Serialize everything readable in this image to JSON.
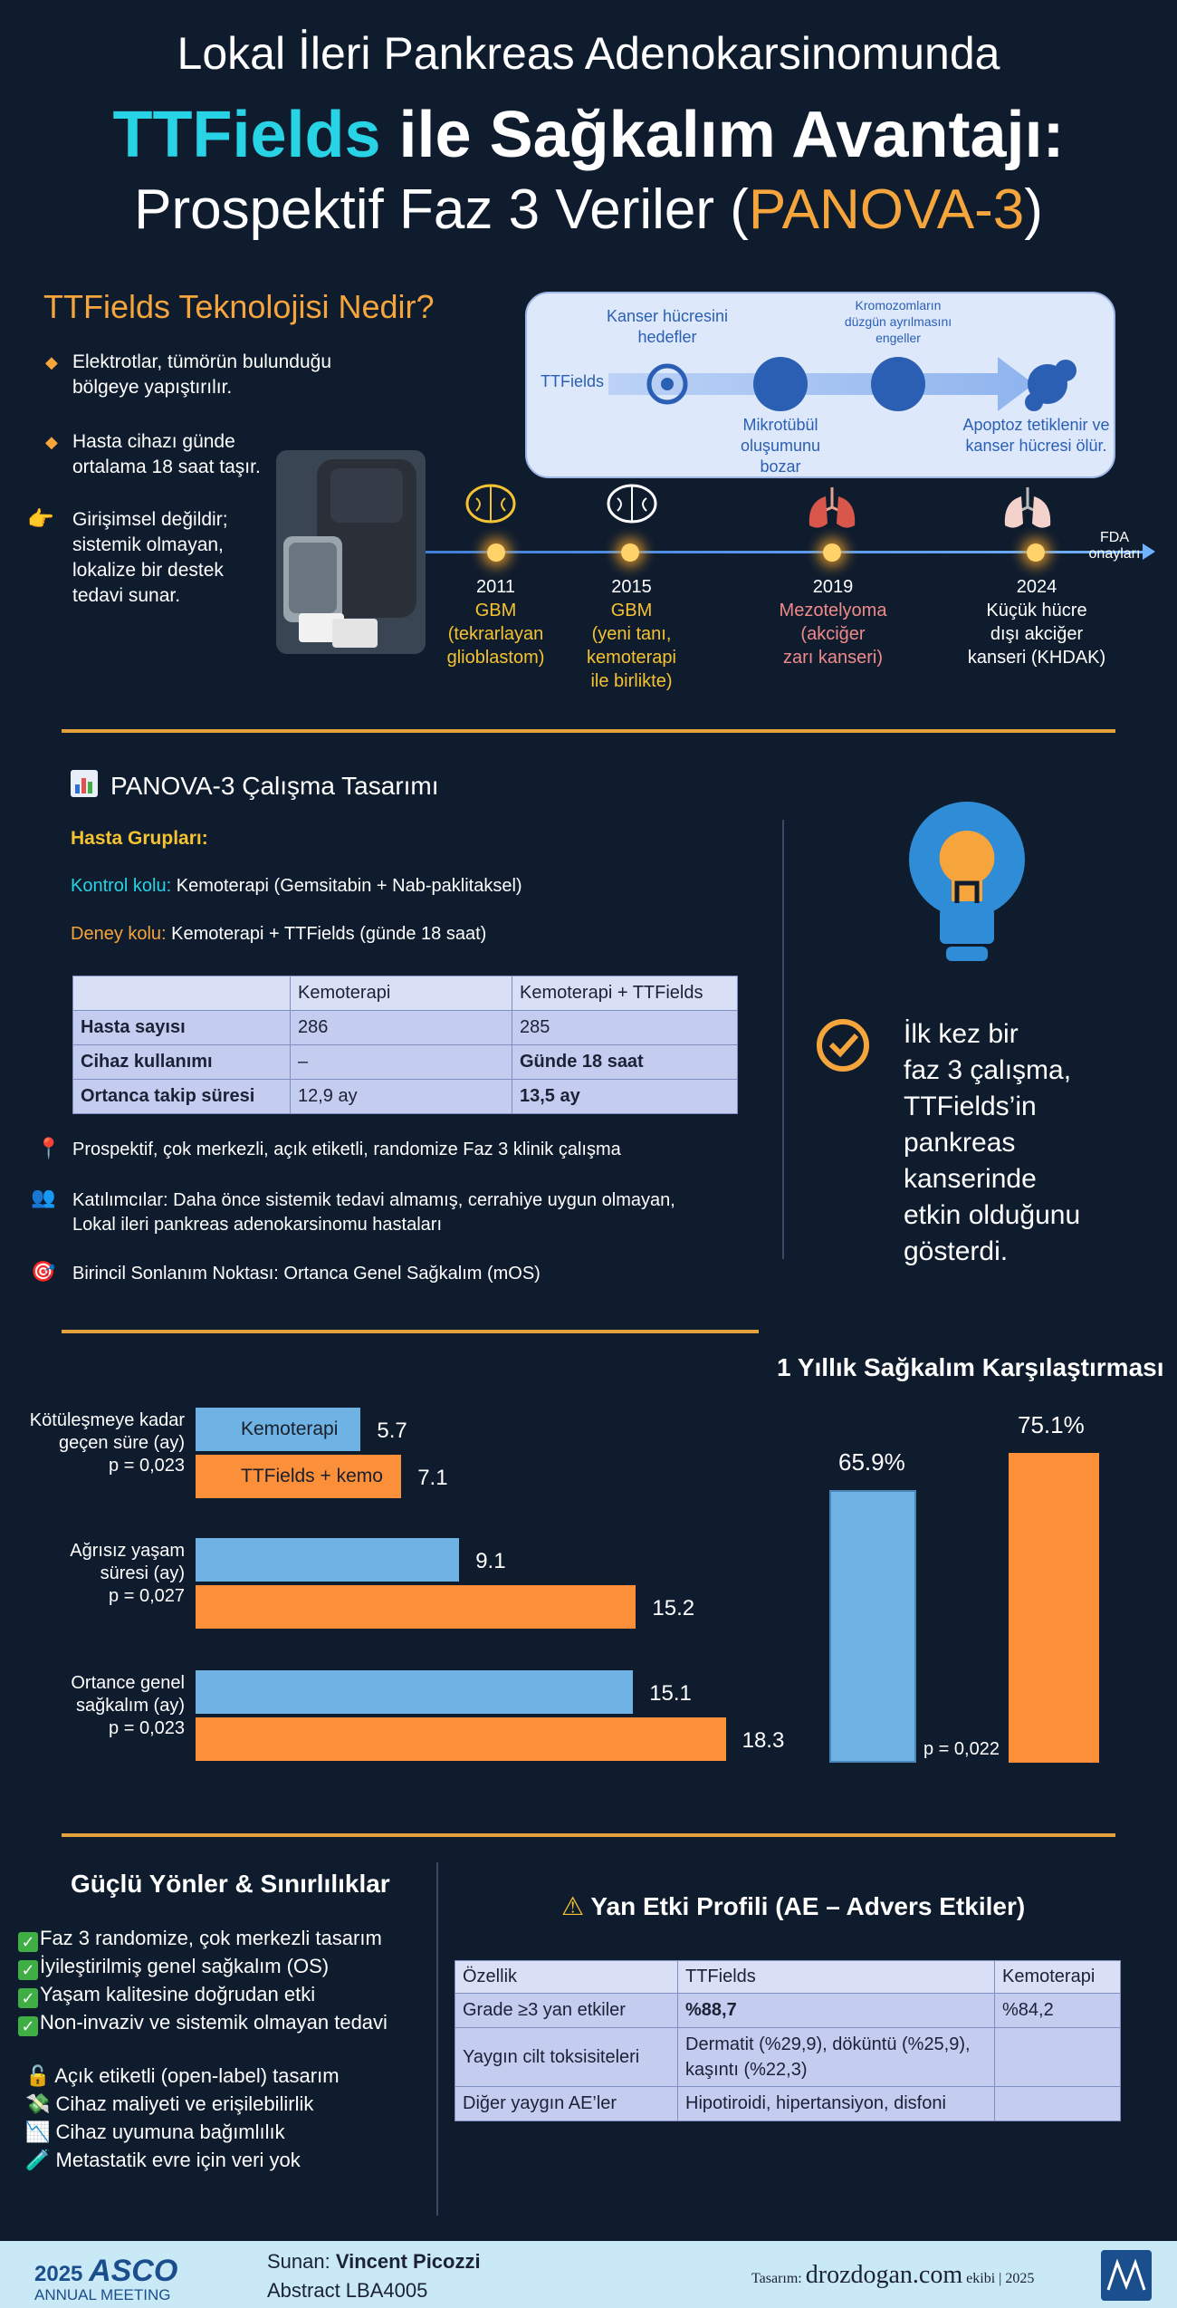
{
  "header": {
    "line1": "Lokal İleri Pankreas Adenokarsinomunda",
    "line2_highlight": "TTFields",
    "line2_rest": " ile Sağkalım Avantajı:",
    "line3_prefix": "Prospektif Faz 3 Veriler (",
    "line3_highlight": "PANOVA-3",
    "line3_suffix": ")"
  },
  "tech": {
    "title": "TTFields Teknolojisi Nedir?",
    "bullets": [
      "Elektrotlar, tümörün bulunduğu bölgeye yapıştırılır.",
      "Hasta cihazı günde ortalama 18 saat taşır.",
      "Girişimsel değildir; sistemik olmayan, lokalize bir destek tedavi sunar."
    ],
    "mechanism": {
      "source": "TTFields",
      "step1_top": "Kanser hücresini hedefler",
      "step2_bottom": "Mikrotübül oluşumunu bozar",
      "step3_top": "Kromozomların düzgün ayrılmasını engeller",
      "step4_bottom": "Apoptoz tetiklenir ve kanser hücresi ölür."
    },
    "timeline_end": "FDA onayları",
    "timeline": [
      {
        "year": "2011",
        "line1": "GBM",
        "line2": "(tekrarlayan",
        "line3": "glioblastom)"
      },
      {
        "year": "2015",
        "line1": "GBM",
        "line2": "(yeni tanı,",
        "line3": "kemoterapi",
        "line4": "ile birlikte)"
      },
      {
        "year": "2019",
        "line1": "Mezotelyoma",
        "line2": "(akciğer",
        "line3": "zarı kanseri)"
      },
      {
        "year": "2024",
        "line1": "Küçük hücre",
        "line2": "dışı akciğer",
        "line3": "kanseri (KHDAK)"
      }
    ]
  },
  "design": {
    "title": "PANOVA-3 Çalışma Tasarımı",
    "groups_label": "Hasta Grupları:",
    "control_label": "Kontrol kolu:",
    "control_text": " Kemoterapi (Gemsitabin + Nab-paklitaksel)",
    "exp_label": "Deney kolu:",
    "exp_text": " Kemoterapi + TTFields (günde 18 saat)",
    "table": {
      "headers": [
        "",
        "Kemoterapi",
        "Kemoterapi + TTFields"
      ],
      "rows": [
        [
          "Hasta sayısı",
          "286",
          "285"
        ],
        [
          "Cihaz kullanımı",
          "–",
          "Günde 18 saat"
        ],
        [
          "Ortanca takip süresi",
          "12,9 ay",
          "13,5 ay"
        ]
      ]
    },
    "notes": [
      "Prospektif, çok merkezli, açık etiketli, randomize Faz 3 klinik çalışma",
      "Katılımcılar: Daha önce sistemik tedavi almamış, cerrahiye uygun olmayan,",
      "Lokal ileri pankreas adenokarsinomu hastaları",
      "Birincil Sonlanım Noktası: Ortanca Genel Sağkalım (mOS)"
    ],
    "callout": [
      "İlk kez bir",
      "faz 3 çalışma,",
      "TTFields’in",
      "pankreas",
      "kanserinde",
      "etkin olduğunu",
      "gösterdi."
    ]
  },
  "chart_data": [
    {
      "type": "bar",
      "orientation": "horizontal",
      "categories": [
        "Kötüleşmeye kadar geçen süre (ay)",
        "Ağrısız yaşam süresi (ay)",
        "Ortance genel sağkalım (ay)"
      ],
      "series": [
        {
          "name": "Kemoterapi",
          "values": [
            5.7,
            9.1,
            15.1
          ],
          "color": "#6eb3e3"
        },
        {
          "name": "TTFields + kemo",
          "values": [
            7.1,
            15.2,
            18.3
          ],
          "color": "#fb8f3a"
        }
      ],
      "value_labels": [
        [
          "5.7",
          "9.1",
          "15.1"
        ],
        [
          "7.1",
          "15.2",
          "18.3"
        ]
      ],
      "pvalues": [
        "p = 0,023",
        "p = 0,027",
        "p = 0,023"
      ],
      "metric_lines": [
        [
          "Kötüleşmeye kadar",
          "geçen süre (ay)"
        ],
        [
          "Ağrısız yaşam",
          "süresi (ay)"
        ],
        [
          "Ortance genel",
          "sağkalım (ay)"
        ]
      ]
    },
    {
      "type": "bar",
      "title": "1 Yıllık Sağkalım Karşılaştırması",
      "categories": [
        "Kemoterapi",
        "TTFields + kemo"
      ],
      "values": [
        65.9,
        75.1
      ],
      "value_labels": [
        "65.9%",
        "75.1%"
      ],
      "colors": [
        "#6eb3e3",
        "#fb8f3a"
      ],
      "pvalue": "p = 0,022"
    }
  ],
  "strengths": {
    "title": "Güçlü Yönler & Sınırlılıklar",
    "pros": [
      "Faz 3 randomize, çok merkezli tasarım",
      "İyileştirilmiş genel sağkalım (OS)",
      "Yaşam kalitesine doğrudan etki",
      "Non-invaziv ve sistemik olmayan tedavi"
    ],
    "cons": [
      "Açık etiketli (open-label) tasarım",
      "Cihaz maliyeti ve erişilebilirlik",
      "Cihaz uyumuna bağımlılık",
      "Metastatik evre için veri yok"
    ]
  },
  "ae": {
    "title": "Yan Etki Profili (AE – Advers Etkiler)",
    "headers": [
      "Özellik",
      "TTFields",
      "Kemoterapi"
    ],
    "rows": [
      [
        "Grade ≥3 yan etkiler",
        "%88,7",
        "%84,2"
      ],
      [
        "Yaygın cilt toksisiteleri",
        "Dermatit (%29,9), döküntü (%25,9), kaşıntı (%22,3)",
        ""
      ],
      [
        "Diğer yaygın AE’ler",
        "Hipotiroidi, hipertansiyon, disfoni",
        ""
      ]
    ]
  },
  "footer": {
    "year": "2025",
    "brand": "ASCO",
    "meeting": "ANNUAL MEETING",
    "presenter_label": "Sunan: ",
    "presenter_name": "Vincent Picozzi",
    "abstract": "Abstract  LBA4005",
    "design_label": "Tasarım: ",
    "site": "drozdogan.com",
    "design_suffix": " ekibi | 2025"
  },
  "colors": {
    "accent_cyan": "#29d3e6",
    "accent_orange": "#f5a53c",
    "background": "#0f1c2e"
  }
}
